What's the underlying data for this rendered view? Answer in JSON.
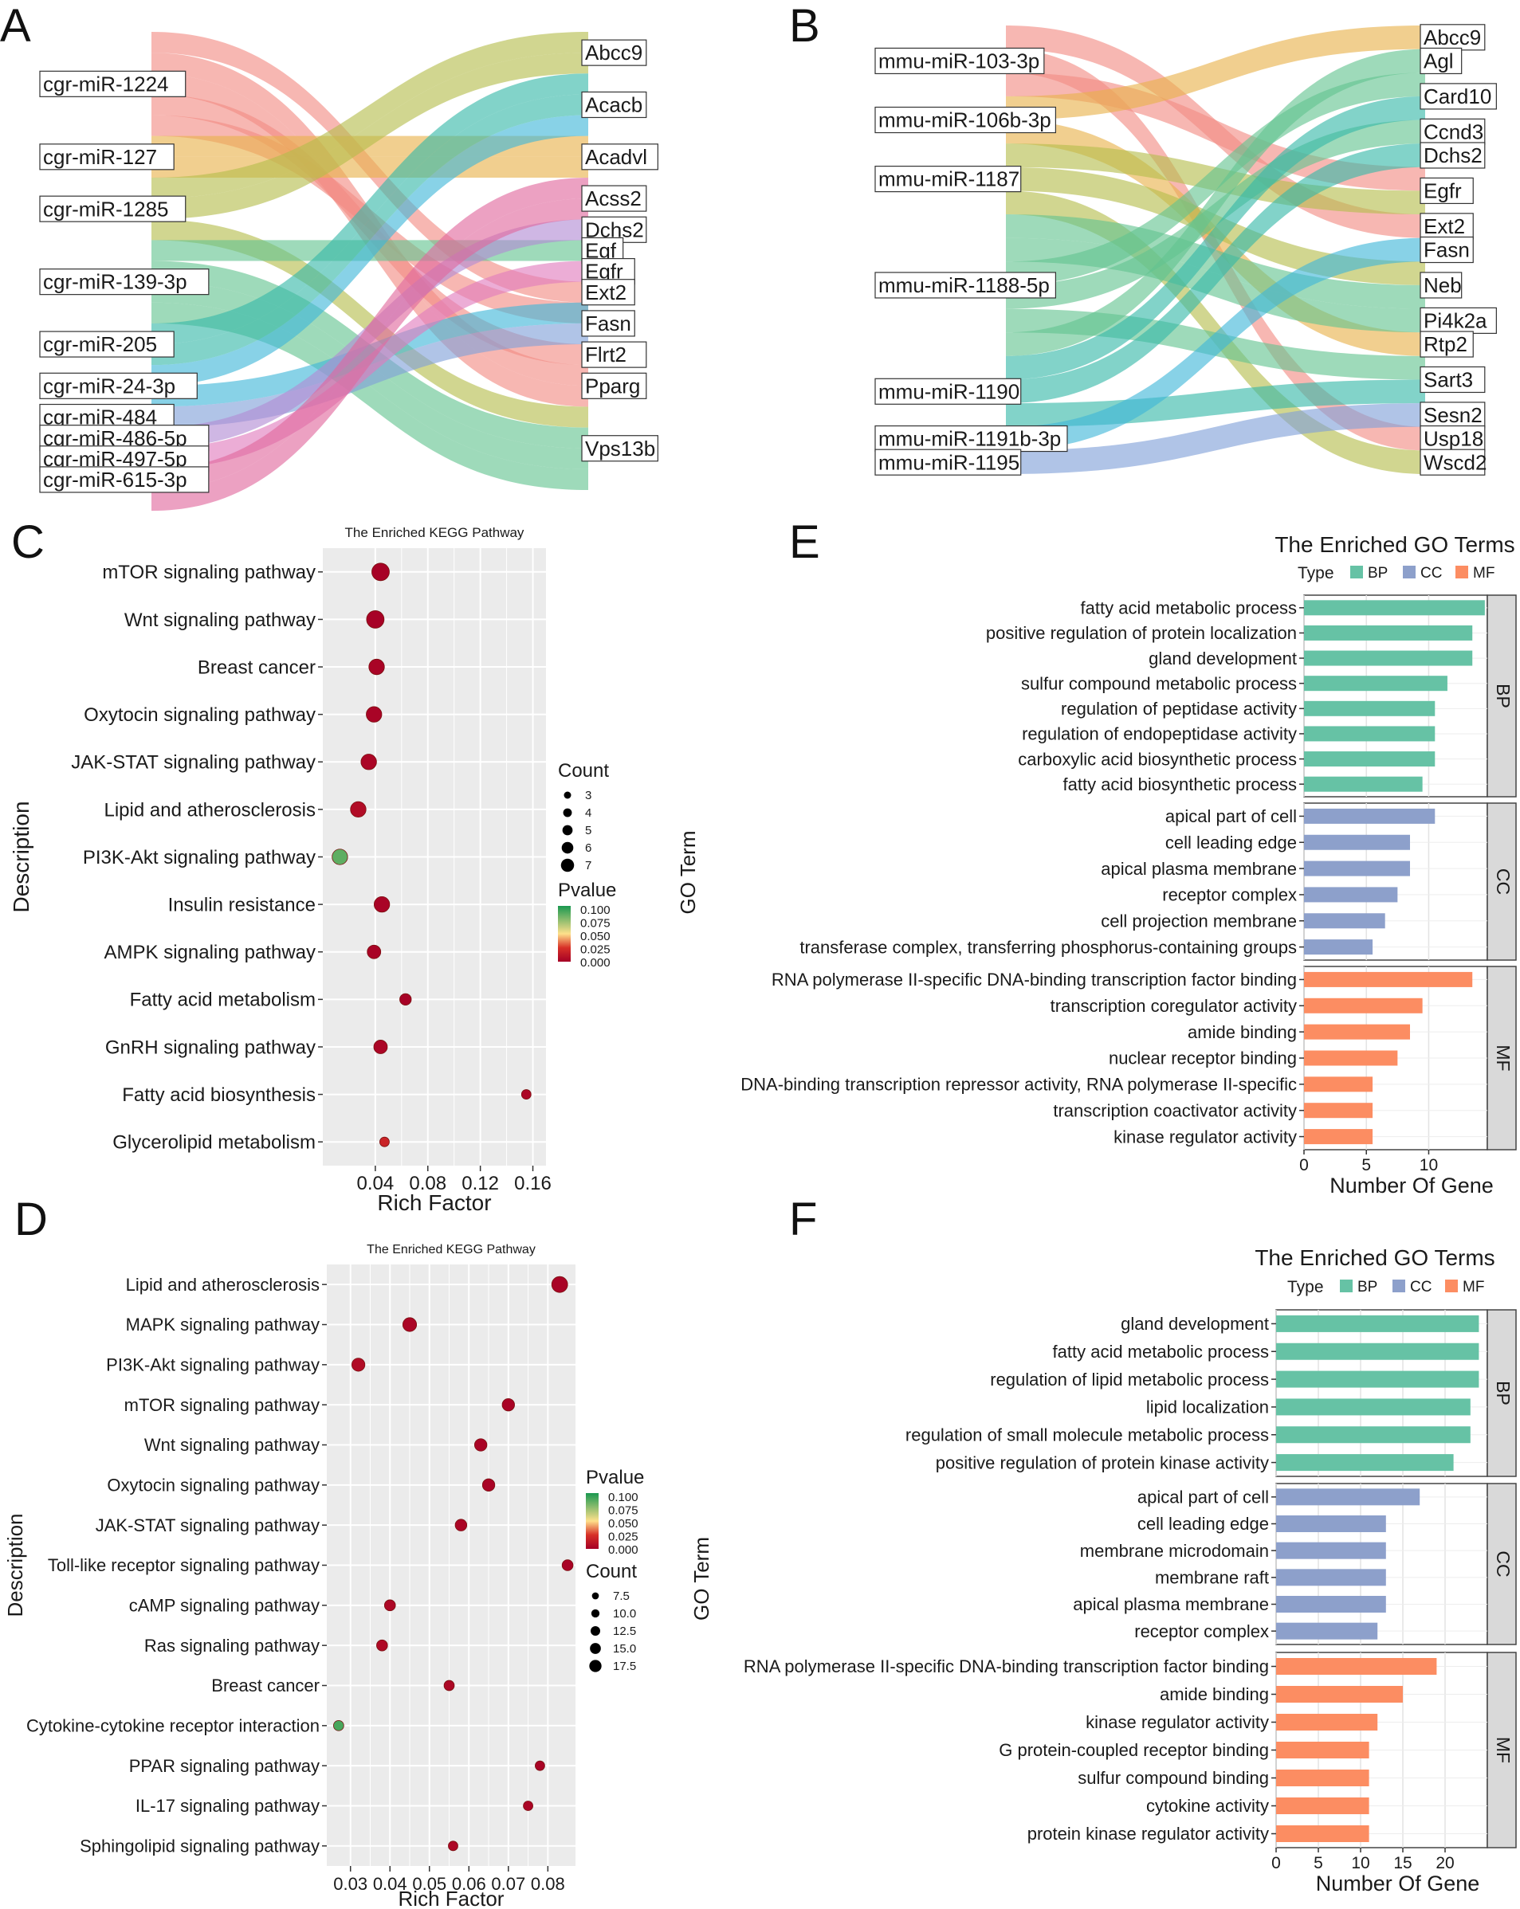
{
  "panel_letters": {
    "a": "A",
    "b": "B",
    "c": "C",
    "d": "D",
    "e": "E",
    "f": "F"
  },
  "colors": {
    "bp": "#66c2a5",
    "cc": "#8da0cb",
    "mf": "#fc8d62",
    "panel_bg": "#ebebeb",
    "strip_bg": "#d9d9d9",
    "p_high": "#1a9850",
    "p_mid": "#fee08b",
    "p_low": "#d73027",
    "p_zero": "#a50026"
  },
  "chart_data": [
    {
      "id": "A",
      "type": "sankey",
      "title": "",
      "sources": [
        "cgr-miR-1224",
        "cgr-miR-127",
        "cgr-miR-1285",
        "cgr-miR-139-3p",
        "cgr-miR-205",
        "cgr-miR-24-3p",
        "cgr-miR-484",
        "cgr-miR-486-5p",
        "cgr-miR-497-5p",
        "cgr-miR-615-3p"
      ],
      "targets": [
        "Abcc9",
        "Acacb",
        "Acadvl",
        "Acss2",
        "Dchs2",
        "Egf",
        "Egfr",
        "Ext2",
        "Fasn",
        "Flrt2",
        "Pparg",
        "Vps13b"
      ],
      "source_weights": [
        5,
        2,
        3,
        4,
        2,
        2,
        1,
        1,
        1,
        1
      ],
      "target_weights": [
        2,
        3,
        2,
        2,
        1,
        1,
        1,
        1,
        2,
        1,
        2,
        4
      ],
      "links": [
        [
          0,
          7
        ],
        [
          0,
          10
        ],
        [
          0,
          10
        ],
        [
          0,
          9
        ],
        [
          0,
          8
        ],
        [
          1,
          2
        ],
        [
          1,
          2
        ],
        [
          2,
          0
        ],
        [
          2,
          0
        ],
        [
          2,
          11
        ],
        [
          3,
          5
        ],
        [
          3,
          11
        ],
        [
          3,
          11
        ],
        [
          3,
          11
        ],
        [
          4,
          1
        ],
        [
          4,
          1
        ],
        [
          5,
          1
        ],
        [
          5,
          7
        ],
        [
          6,
          8
        ],
        [
          7,
          4
        ],
        [
          8,
          6
        ],
        [
          9,
          3
        ],
        [
          9,
          3
        ]
      ]
    },
    {
      "id": "B",
      "type": "sankey",
      "title": "",
      "sources": [
        "mmu-miR-103-3p",
        "mmu-miR-106b-3p",
        "mmu-miR-1187",
        "mmu-miR-1188-5p",
        "mmu-miR-1190",
        "mmu-miR-1191b-3p",
        "mmu-miR-1195"
      ],
      "targets": [
        "Abcc9",
        "Agl",
        "Card10",
        "Ccnd3",
        "Dchs2",
        "Egfr",
        "Ext2",
        "Fasn",
        "Neb",
        "Pi4k2a",
        "Rtp2",
        "Sart3",
        "Sesn2",
        "Usp18",
        "Wscd2"
      ],
      "source_weights": [
        3,
        2,
        3,
        6,
        3,
        1,
        1
      ],
      "target_weights": [
        1,
        1,
        2,
        1,
        1,
        2,
        1,
        1,
        2,
        1,
        1,
        2,
        1,
        1,
        1
      ],
      "links": [
        [
          0,
          6
        ],
        [
          0,
          13
        ],
        [
          0,
          5
        ],
        [
          1,
          0
        ],
        [
          1,
          10
        ],
        [
          2,
          5
        ],
        [
          2,
          8
        ],
        [
          2,
          14
        ],
        [
          3,
          8
        ],
        [
          3,
          9
        ],
        [
          3,
          2
        ],
        [
          3,
          3
        ],
        [
          3,
          11
        ],
        [
          3,
          1
        ],
        [
          4,
          2
        ],
        [
          4,
          4
        ],
        [
          4,
          11
        ],
        [
          5,
          7
        ],
        [
          6,
          12
        ]
      ]
    },
    {
      "id": "C",
      "type": "scatter",
      "title": "The Enriched KEGG Pathway",
      "xlabel": "Rich Factor",
      "ylabel": "Description",
      "xlim": [
        0.0,
        0.17
      ],
      "xticks": [
        0.04,
        0.08,
        0.12,
        0.16
      ],
      "xtick_labels": [
        "0.04",
        "0.08",
        "0.12",
        "0.16"
      ],
      "categories": [
        "mTOR signaling pathway",
        "Wnt signaling pathway",
        "Breast cancer",
        "Oxytocin signaling pathway",
        "JAK-STAT signaling pathway",
        "Lipid and atherosclerosis",
        "PI3K-Akt signaling pathway",
        "Insulin resistance",
        "AMPK signaling pathway",
        "Fatty acid metabolism",
        "GnRH signaling pathway",
        "Fatty acid biosynthesis",
        "Glycerolipid metabolism"
      ],
      "rich_factor": [
        0.044,
        0.04,
        0.041,
        0.039,
        0.035,
        0.027,
        0.013,
        0.045,
        0.039,
        0.063,
        0.044,
        0.155,
        0.047
      ],
      "count": [
        7,
        7,
        6,
        6,
        6,
        6,
        6,
        6,
        5,
        4,
        5,
        3,
        3
      ],
      "pvalue": [
        0.001,
        0.001,
        0.002,
        0.002,
        0.003,
        0.006,
        0.085,
        0.002,
        0.002,
        0.001,
        0.003,
        0.004,
        0.018
      ],
      "size_legend_title": "Count",
      "size_legend": [
        3,
        4,
        5,
        6,
        7
      ],
      "color_legend_title": "Pvalue",
      "color_legend_ticks": [
        "0.100",
        "0.075",
        "0.050",
        "0.025",
        "0.000"
      ]
    },
    {
      "id": "D",
      "type": "scatter",
      "title": "The Enriched KEGG Pathway",
      "xlabel": "Rich Factor",
      "ylabel": "Description",
      "xlim": [
        0.024,
        0.087
      ],
      "xticks": [
        0.03,
        0.04,
        0.05,
        0.06,
        0.07,
        0.08
      ],
      "xtick_labels": [
        "0.03",
        "0.04",
        "0.05",
        "0.06",
        "0.07",
        "0.08"
      ],
      "categories": [
        "Lipid and atherosclerosis",
        "MAPK signaling pathway",
        "PI3K-Akt signaling pathway",
        "mTOR signaling pathway",
        "Wnt signaling pathway",
        "Oxytocin signaling pathway",
        "JAK-STAT signaling pathway",
        "Toll-like receptor signaling pathway",
        "cAMP signaling pathway",
        "Ras signaling pathway",
        "Breast cancer",
        "Cytokine-cytokine receptor interaction",
        "PPAR signaling pathway",
        "IL-17 signaling pathway",
        "Sphingolipid signaling pathway"
      ],
      "rich_factor": [
        0.083,
        0.045,
        0.032,
        0.07,
        0.063,
        0.065,
        0.058,
        0.085,
        0.04,
        0.038,
        0.055,
        0.027,
        0.078,
        0.075,
        0.056
      ],
      "count": [
        17,
        14,
        13,
        12,
        12,
        12,
        11,
        10,
        10,
        10,
        9,
        9,
        8,
        8,
        8
      ],
      "pvalue": [
        0.002,
        0.003,
        0.006,
        0.002,
        0.002,
        0.002,
        0.003,
        0.002,
        0.004,
        0.005,
        0.004,
        0.09,
        0.002,
        0.003,
        0.004
      ],
      "size_legend_title": "Count",
      "size_legend": [
        7.5,
        10.0,
        12.5,
        15.0,
        17.5
      ],
      "size_legend_labels": [
        "7.5",
        "10.0",
        "12.5",
        "15.0",
        "17.5"
      ],
      "color_legend_title": "Pvalue",
      "color_legend_ticks": [
        "0.100",
        "0.075",
        "0.050",
        "0.025",
        "0.000"
      ]
    },
    {
      "id": "E",
      "type": "bar",
      "orientation": "horizontal",
      "title": "The Enriched GO Terms",
      "xlabel": "Number Of Gene",
      "ylabel": "GO Term",
      "legend_title": "Type",
      "legend": [
        "BP",
        "CC",
        "MF"
      ],
      "xlim": [
        0,
        14.7
      ],
      "xticks": [
        0,
        5,
        10
      ],
      "series": [
        {
          "name": "BP",
          "categories": [
            "fatty acid metabolic process",
            "positive regulation of protein localization",
            "gland development",
            "sulfur compound metabolic process",
            "regulation of peptidase activity",
            "regulation of endopeptidase activity",
            "carboxylic acid biosynthetic process",
            "fatty acid biosynthetic process"
          ],
          "values": [
            14.5,
            13.5,
            13.5,
            11.5,
            10.5,
            10.5,
            10.5,
            9.5
          ]
        },
        {
          "name": "CC",
          "categories": [
            "apical part of cell",
            "cell leading edge",
            "apical plasma membrane",
            "receptor complex",
            "cell projection membrane",
            "transferase complex, transferring phosphorus-containing groups"
          ],
          "values": [
            10.5,
            8.5,
            8.5,
            7.5,
            6.5,
            5.5
          ]
        },
        {
          "name": "MF",
          "categories": [
            "RNA polymerase II-specific DNA-binding transcription factor binding",
            "transcription coregulator activity",
            "amide binding",
            "nuclear receptor binding",
            "DNA-binding transcription repressor activity, RNA polymerase II-specific",
            "transcription coactivator activity",
            "kinase regulator activity"
          ],
          "values": [
            13.5,
            9.5,
            8.5,
            7.5,
            5.5,
            5.5,
            5.5
          ]
        }
      ]
    },
    {
      "id": "F",
      "type": "bar",
      "orientation": "horizontal",
      "title": "The Enriched GO Terms",
      "xlabel": "Number Of Gene",
      "ylabel": "GO Term",
      "legend_title": "Type",
      "legend": [
        "BP",
        "CC",
        "MF"
      ],
      "xlim": [
        0,
        25
      ],
      "xticks": [
        0,
        5,
        10,
        15,
        20
      ],
      "series": [
        {
          "name": "BP",
          "categories": [
            "gland development",
            "fatty acid metabolic process",
            "regulation of lipid metabolic process",
            "lipid localization",
            "regulation of small molecule metabolic process",
            "positive regulation of protein kinase activity"
          ],
          "values": [
            24,
            24,
            24,
            23,
            23,
            21
          ]
        },
        {
          "name": "CC",
          "categories": [
            "apical part of cell",
            "cell leading edge",
            "membrane microdomain",
            "membrane raft",
            "apical plasma membrane",
            "receptor complex"
          ],
          "values": [
            17,
            13,
            13,
            13,
            13,
            12
          ]
        },
        {
          "name": "MF",
          "categories": [
            "RNA polymerase II-specific DNA-binding transcription factor binding",
            "amide binding",
            "kinase regulator activity",
            "G protein-coupled receptor binding",
            "sulfur compound binding",
            "cytokine activity",
            "protein kinase regulator activity"
          ],
          "values": [
            19,
            15,
            12,
            11,
            11,
            11,
            11
          ]
        }
      ]
    }
  ]
}
